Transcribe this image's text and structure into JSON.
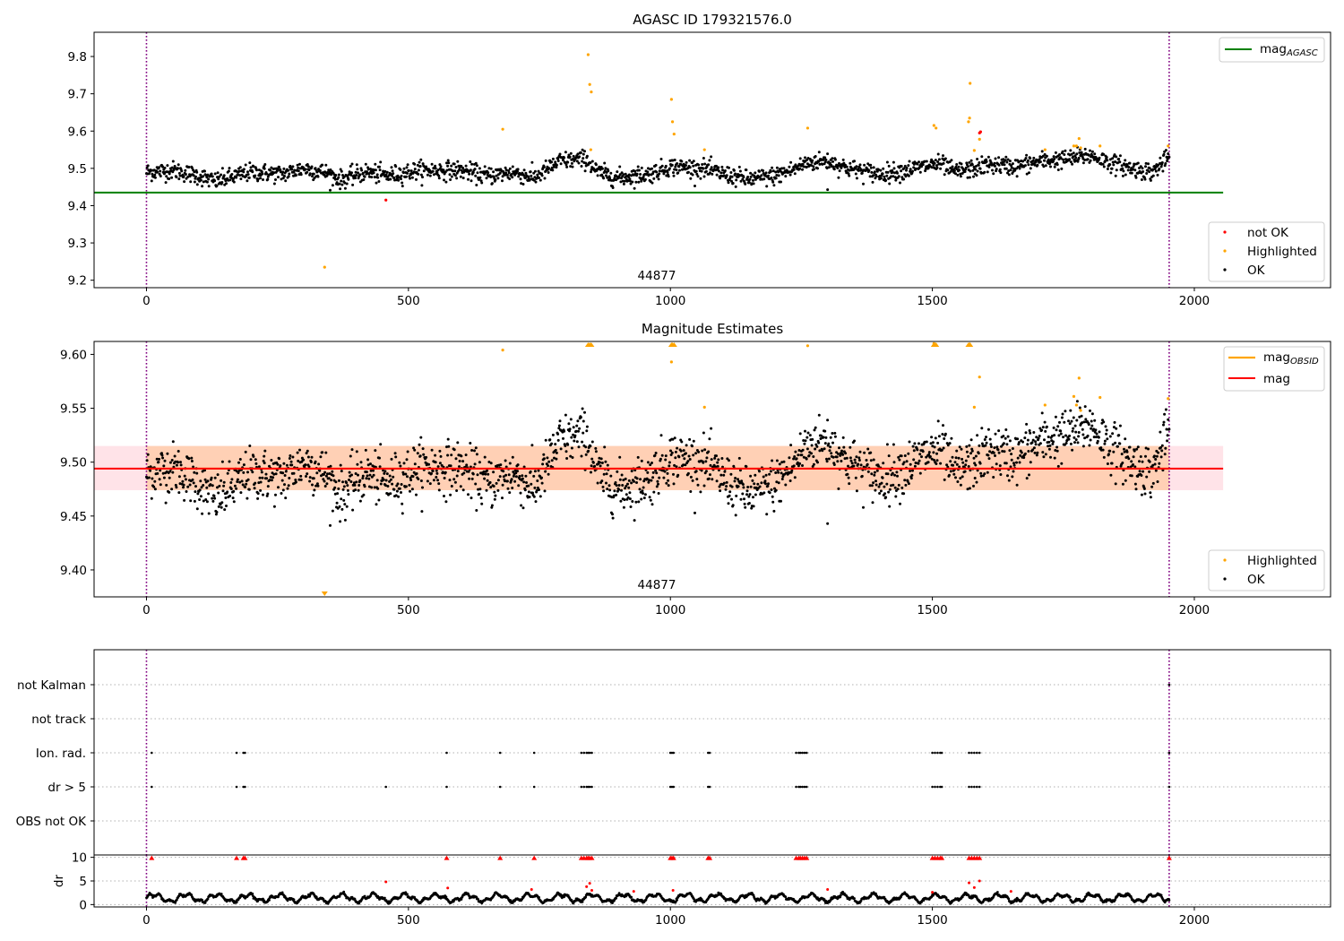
{
  "chart_data": [
    {
      "id": "mag-agasc",
      "type": "scatter",
      "title": "AGASC ID 179321576.0",
      "xlim": [
        -100,
        2260
      ],
      "ylim": [
        9.18,
        9.865
      ],
      "xticks": [
        0,
        500,
        1000,
        1500,
        2000
      ],
      "yticks": [
        9.2,
        9.3,
        9.4,
        9.5,
        9.6,
        9.7,
        9.8
      ],
      "colors": {
        "ok": "#000000",
        "highlighted": "#ffa500",
        "not_ok": "#ff0000",
        "mag_agasc": "#008000",
        "obsid_line": "#800080"
      },
      "obsid_boundaries": [
        0,
        1952
      ],
      "obsid_label": {
        "text": "44877",
        "x": 976
      },
      "mag_agasc": {
        "value": 9.435,
        "x_range": [
          -100,
          2055
        ]
      },
      "ok_trend": [
        [
          0,
          9.49
        ],
        [
          50,
          9.495
        ],
        [
          100,
          9.48
        ],
        [
          130,
          9.465
        ],
        [
          200,
          9.49
        ],
        [
          260,
          9.485
        ],
        [
          300,
          9.5
        ],
        [
          340,
          9.49
        ],
        [
          370,
          9.47
        ],
        [
          420,
          9.49
        ],
        [
          460,
          9.48
        ],
        [
          520,
          9.495
        ],
        [
          600,
          9.495
        ],
        [
          650,
          9.48
        ],
        [
          700,
          9.49
        ],
        [
          740,
          9.475
        ],
        [
          790,
          9.52
        ],
        [
          840,
          9.525
        ],
        [
          860,
          9.49
        ],
        [
          900,
          9.475
        ],
        [
          960,
          9.485
        ],
        [
          1000,
          9.505
        ],
        [
          1060,
          9.5
        ],
        [
          1100,
          9.485
        ],
        [
          1150,
          9.47
        ],
        [
          1200,
          9.48
        ],
        [
          1240,
          9.5
        ],
        [
          1260,
          9.515
        ],
        [
          1300,
          9.52
        ],
        [
          1340,
          9.5
        ],
        [
          1400,
          9.485
        ],
        [
          1450,
          9.495
        ],
        [
          1500,
          9.51
        ],
        [
          1520,
          9.51
        ],
        [
          1540,
          9.49
        ],
        [
          1580,
          9.5
        ],
        [
          1610,
          9.51
        ],
        [
          1660,
          9.505
        ],
        [
          1710,
          9.52
        ],
        [
          1760,
          9.525
        ],
        [
          1800,
          9.535
        ],
        [
          1840,
          9.515
        ],
        [
          1880,
          9.5
        ],
        [
          1920,
          9.49
        ],
        [
          1952,
          9.53
        ]
      ],
      "ok_spread": 0.012,
      "ok_count": 1950,
      "ok_outliers": [
        [
          1300,
          9.443
        ]
      ],
      "highlighted": [
        [
          340,
          9.235
        ],
        [
          680,
          9.605
        ],
        [
          843,
          9.805
        ],
        [
          846,
          9.725
        ],
        [
          849,
          9.705
        ],
        [
          848,
          9.55
        ],
        [
          1002,
          9.685
        ],
        [
          1004,
          9.625
        ],
        [
          1007,
          9.592
        ],
        [
          1065,
          9.55
        ],
        [
          1262,
          9.608
        ],
        [
          1503,
          9.615
        ],
        [
          1507,
          9.608
        ],
        [
          1572,
          9.728
        ],
        [
          1569,
          9.625
        ],
        [
          1571,
          9.635
        ],
        [
          1580,
          9.548
        ],
        [
          1590,
          9.578
        ],
        [
          1715,
          9.55
        ],
        [
          1770,
          9.56
        ],
        [
          1775,
          9.56
        ],
        [
          1780,
          9.58
        ],
        [
          1783,
          9.555
        ],
        [
          1820,
          9.56
        ],
        [
          1950,
          9.56
        ]
      ],
      "not_ok": [
        [
          457,
          9.415
        ],
        [
          1590,
          9.595
        ],
        [
          1592,
          9.598
        ]
      ],
      "legend_lines": [
        {
          "label": "mag",
          "sub": "AGASC",
          "color": "#008000"
        }
      ],
      "legend_points": [
        {
          "label": "not OK",
          "color": "#ff0000"
        },
        {
          "label": "Highlighted",
          "color": "#ffa500"
        },
        {
          "label": "OK",
          "color": "#000000"
        }
      ]
    },
    {
      "id": "mag-estimates",
      "type": "scatter",
      "title": "Magnitude Estimates",
      "xlim": [
        -100,
        2260
      ],
      "ylim": [
        9.375,
        9.612
      ],
      "xticks": [
        0,
        500,
        1000,
        1500,
        2000
      ],
      "yticks": [
        9.4,
        9.45,
        9.5,
        9.55,
        9.6
      ],
      "ytick_labels": [
        "9.40",
        "9.45",
        "9.50",
        "9.55",
        "9.60"
      ],
      "colors": {
        "ok": "#000000",
        "highlighted": "#ffa500",
        "mag": "#ff0000",
        "mag_obsid": "#ffa500",
        "band_mag": "#ffc0cb",
        "band_obsid": "#ffc8a0"
      },
      "obsid_boundaries": [
        0,
        1952
      ],
      "obsid_label": {
        "text": "44877",
        "x": 976
      },
      "mag": {
        "value": 9.494,
        "x_range": [
          -100,
          2055
        ],
        "band": [
          9.474,
          9.515
        ]
      },
      "mag_obsid": {
        "value": 9.494,
        "x_range": [
          0,
          1952
        ],
        "band": [
          9.474,
          9.515
        ]
      },
      "highlighted_in": [
        [
          680,
          9.604
        ],
        [
          1002,
          9.593
        ],
        [
          1065,
          9.551
        ],
        [
          1262,
          9.608
        ],
        [
          1503,
          9.61
        ],
        [
          1580,
          9.551
        ],
        [
          1590,
          9.579
        ],
        [
          1715,
          9.553
        ],
        [
          1770,
          9.561
        ],
        [
          1775,
          9.553
        ],
        [
          1780,
          9.578
        ],
        [
          1783,
          9.548
        ],
        [
          1820,
          9.56
        ],
        [
          1950,
          9.559
        ]
      ],
      "highlighted_clipped_top": [
        843,
        846,
        849,
        1002,
        1004,
        1007,
        1503,
        1507,
        1569,
        1571,
        1572
      ],
      "highlighted_clipped_bottom": [
        340
      ],
      "legend_lines": [
        {
          "label": "mag",
          "sub": "OBSID",
          "color": "#ffa500"
        },
        {
          "label": "mag",
          "sub": "",
          "color": "#ff0000"
        }
      ],
      "legend_points": [
        {
          "label": "Highlighted",
          "color": "#ffa500"
        },
        {
          "label": "OK",
          "color": "#000000"
        }
      ]
    },
    {
      "id": "flags",
      "type": "scatter",
      "xlim": [
        -100,
        2260
      ],
      "categories": [
        "not Kalman",
        "not track",
        "Ion. rad.",
        "dr > 5",
        "OBS not OK"
      ],
      "obsid_boundaries": [
        0,
        1952
      ],
      "flag_x": {
        "Ion. rad.": [
          10,
          172,
          185,
          188,
          573,
          675,
          740,
          830,
          835,
          840,
          843,
          846,
          850,
          1000,
          1003,
          1006,
          1072,
          1075,
          1240,
          1245,
          1248,
          1252,
          1256,
          1260,
          1500,
          1505,
          1510,
          1515,
          1518,
          1570,
          1575,
          1580,
          1585,
          1590,
          1952
        ],
        "dr > 5": [
          10,
          172,
          185,
          188,
          457,
          573,
          675,
          740,
          830,
          835,
          840,
          843,
          846,
          850,
          1000,
          1003,
          1006,
          1072,
          1075,
          1240,
          1245,
          1248,
          1252,
          1256,
          1260,
          1500,
          1505,
          1510,
          1515,
          1518,
          1570,
          1575,
          1580,
          1585,
          1590,
          1952
        ],
        "not Kalman": [
          1952
        ]
      }
    },
    {
      "id": "dr",
      "type": "scatter",
      "ylabel": "dr",
      "xlim": [
        -100,
        2260
      ],
      "ylim": [
        -0.5,
        10.5
      ],
      "xticks": [
        0,
        500,
        1000,
        1500,
        2000
      ],
      "yticks": [
        0,
        5,
        10
      ],
      "colors": {
        "ok": "#000000",
        "high": "#ff0000"
      },
      "dr_high_clip": 10,
      "dr_red_x": [
        10,
        172,
        185,
        188,
        573,
        675,
        740,
        830,
        835,
        840,
        843,
        846,
        850,
        1000,
        1003,
        1006,
        1072,
        1075,
        1240,
        1245,
        1248,
        1252,
        1256,
        1260,
        1500,
        1505,
        1510,
        1515,
        1518,
        1570,
        1575,
        1580,
        1585,
        1590,
        1952
      ],
      "dr_mid_red": [
        [
          457,
          4.8
        ],
        [
          575,
          3.5
        ],
        [
          735,
          3.2
        ],
        [
          840,
          3.8
        ],
        [
          846,
          4.5
        ],
        [
          850,
          3.0
        ],
        [
          930,
          2.8
        ],
        [
          1005,
          3.0
        ],
        [
          1300,
          3.2
        ],
        [
          1500,
          2.6
        ],
        [
          1570,
          4.6
        ],
        [
          1580,
          3.6
        ],
        [
          1590,
          5.0
        ],
        [
          1650,
          2.8
        ]
      ]
    }
  ]
}
